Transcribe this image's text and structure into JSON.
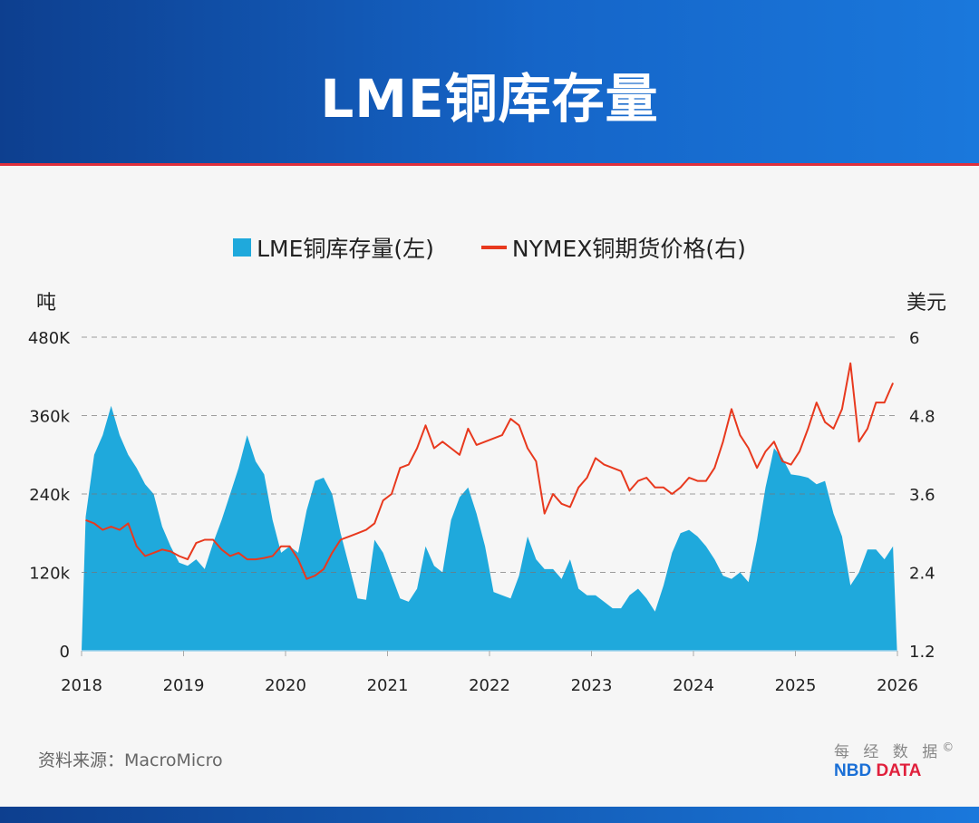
{
  "header": {
    "title": "LME铜库存量"
  },
  "legend": {
    "stock": "LME铜库存量(左)",
    "price": "NYMEX铜期货价格(右)"
  },
  "footer": {
    "source": "资料来源：MacroMicro",
    "logo_cn": "每 经 数 据",
    "logo_copyright": "©",
    "logo_en_1": "NBD",
    "logo_en_2": "DATA"
  },
  "colors": {
    "stock": "#1fa9dc",
    "price": "#e8391e",
    "header": "#1565c8",
    "accent": "#e0303c"
  },
  "chart_data": {
    "type": "area+line",
    "left_unit": "吨",
    "right_unit": "美元",
    "left_ticks": [
      "0",
      "120k",
      "240k",
      "360k",
      "480K"
    ],
    "left_tick_values": [
      0,
      120000,
      240000,
      360000,
      480000
    ],
    "right_ticks": [
      "1.2",
      "2.4",
      "3.6",
      "4.8",
      "6"
    ],
    "right_tick_values": [
      1.2,
      2.4,
      3.6,
      4.8,
      6
    ],
    "x_ticks": [
      "2018",
      "2019",
      "2020",
      "2021",
      "2022",
      "2023",
      "2024",
      "2025",
      "2026"
    ],
    "ylim_left": [
      0,
      480000
    ],
    "ylim_right": [
      1.2,
      6
    ],
    "xlim": [
      "2018-01",
      "2026-01"
    ],
    "grid": "horizontal dashed",
    "legend_position": "top",
    "series": [
      {
        "name": "LME铜库存量(左)",
        "type": "area",
        "axis": "left",
        "unit": "k tonnes",
        "x": [
          "2018-01",
          "2018-02",
          "2018-03",
          "2018-04",
          "2018-05",
          "2018-06",
          "2018-07",
          "2018-08",
          "2018-09",
          "2018-10",
          "2018-11",
          "2018-12",
          "2019-01",
          "2019-02",
          "2019-03",
          "2019-04",
          "2019-05",
          "2019-06",
          "2019-07",
          "2019-08",
          "2019-09",
          "2019-10",
          "2019-11",
          "2019-12",
          "2020-01",
          "2020-02",
          "2020-03",
          "2020-04",
          "2020-05",
          "2020-06",
          "2020-07",
          "2020-08",
          "2020-09",
          "2020-10",
          "2020-11",
          "2020-12",
          "2021-01",
          "2021-02",
          "2021-03",
          "2021-04",
          "2021-05",
          "2021-06",
          "2021-07",
          "2021-08",
          "2021-09",
          "2021-10",
          "2021-11",
          "2021-12",
          "2022-01",
          "2022-02",
          "2022-03",
          "2022-04",
          "2022-05",
          "2022-06",
          "2022-07",
          "2022-08",
          "2022-09",
          "2022-10",
          "2022-11",
          "2022-12",
          "2023-01",
          "2023-02",
          "2023-03",
          "2023-04",
          "2023-05",
          "2023-06",
          "2023-07",
          "2023-08",
          "2023-09",
          "2023-10",
          "2023-11",
          "2023-12",
          "2024-01",
          "2024-02",
          "2024-03",
          "2024-04",
          "2024-05",
          "2024-06",
          "2024-07",
          "2024-08",
          "2024-09",
          "2024-10",
          "2024-11",
          "2024-12",
          "2025-01",
          "2025-02",
          "2025-03",
          "2025-04",
          "2025-05",
          "2025-06",
          "2025-07",
          "2025-08",
          "2025-09",
          "2025-10",
          "2025-11",
          "2025-12"
        ],
        "values": [
          205,
          300,
          330,
          375,
          330,
          300,
          280,
          255,
          240,
          190,
          160,
          135,
          130,
          140,
          125,
          165,
          200,
          240,
          280,
          330,
          290,
          270,
          200,
          150,
          160,
          150,
          215,
          260,
          265,
          240,
          180,
          130,
          80,
          78,
          170,
          150,
          115,
          80,
          75,
          95,
          160,
          130,
          120,
          200,
          235,
          250,
          210,
          160,
          90,
          85,
          80,
          115,
          175,
          140,
          125,
          125,
          110,
          140,
          95,
          85,
          85,
          75,
          65,
          65,
          85,
          95,
          80,
          60,
          100,
          150,
          180,
          185,
          175,
          160,
          140,
          115,
          110,
          120,
          105,
          170,
          250,
          310,
          295,
          270,
          268,
          265,
          255,
          260,
          210,
          175,
          100,
          120,
          155,
          155,
          140,
          160
        ]
      },
      {
        "name": "NYMEX铜期货价格(右)",
        "type": "line",
        "axis": "right",
        "unit": "USD",
        "x": [
          "2018-01",
          "2018-02",
          "2018-03",
          "2018-04",
          "2018-05",
          "2018-06",
          "2018-07",
          "2018-08",
          "2018-09",
          "2018-10",
          "2018-11",
          "2018-12",
          "2019-01",
          "2019-02",
          "2019-03",
          "2019-04",
          "2019-05",
          "2019-06",
          "2019-07",
          "2019-08",
          "2019-09",
          "2019-10",
          "2019-11",
          "2019-12",
          "2020-01",
          "2020-02",
          "2020-03",
          "2020-04",
          "2020-05",
          "2020-06",
          "2020-07",
          "2020-08",
          "2020-09",
          "2020-10",
          "2020-11",
          "2020-12",
          "2021-01",
          "2021-02",
          "2021-03",
          "2021-04",
          "2021-05",
          "2021-06",
          "2021-07",
          "2021-08",
          "2021-09",
          "2021-10",
          "2021-11",
          "2021-12",
          "2022-01",
          "2022-02",
          "2022-03",
          "2022-04",
          "2022-05",
          "2022-06",
          "2022-07",
          "2022-08",
          "2022-09",
          "2022-10",
          "2022-11",
          "2022-12",
          "2023-01",
          "2023-02",
          "2023-03",
          "2023-04",
          "2023-05",
          "2023-06",
          "2023-07",
          "2023-08",
          "2023-09",
          "2023-10",
          "2023-11",
          "2023-12",
          "2024-01",
          "2024-02",
          "2024-03",
          "2024-04",
          "2024-05",
          "2024-06",
          "2024-07",
          "2024-08",
          "2024-09",
          "2024-10",
          "2024-11",
          "2024-12",
          "2025-01",
          "2025-02",
          "2025-03",
          "2025-04",
          "2025-05",
          "2025-06",
          "2025-07",
          "2025-08",
          "2025-09",
          "2025-10",
          "2025-11",
          "2025-12"
        ],
        "values": [
          3.2,
          3.15,
          3.05,
          3.1,
          3.05,
          3.15,
          2.8,
          2.65,
          2.7,
          2.75,
          2.72,
          2.65,
          2.6,
          2.85,
          2.9,
          2.9,
          2.75,
          2.65,
          2.7,
          2.6,
          2.6,
          2.62,
          2.65,
          2.8,
          2.8,
          2.6,
          2.3,
          2.35,
          2.45,
          2.7,
          2.9,
          2.95,
          3.0,
          3.05,
          3.15,
          3.5,
          3.6,
          4.0,
          4.05,
          4.3,
          4.65,
          4.3,
          4.4,
          4.3,
          4.2,
          4.6,
          4.35,
          4.4,
          4.45,
          4.5,
          4.75,
          4.65,
          4.3,
          4.1,
          3.3,
          3.6,
          3.45,
          3.4,
          3.7,
          3.85,
          4.15,
          4.05,
          4.0,
          3.95,
          3.65,
          3.8,
          3.85,
          3.7,
          3.7,
          3.6,
          3.7,
          3.85,
          3.8,
          3.8,
          4.0,
          4.4,
          4.9,
          4.5,
          4.3,
          4.0,
          4.25,
          4.4,
          4.1,
          4.05,
          4.25,
          4.6,
          5.0,
          4.7,
          4.6,
          4.9,
          5.6,
          4.4,
          4.6,
          5.0,
          5.0,
          5.3
        ]
      }
    ]
  }
}
